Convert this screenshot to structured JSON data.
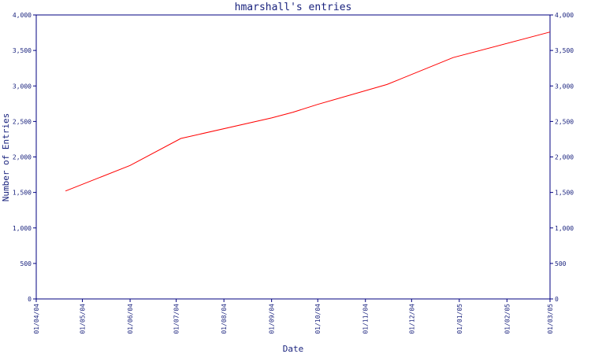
{
  "chart_data": {
    "type": "line",
    "title": "hmarshall's entries",
    "xlabel": "Date",
    "ylabel": "Number of Entries",
    "x_ticks": [
      "01/04/04",
      "01/05/04",
      "01/06/04",
      "01/07/04",
      "01/08/04",
      "01/09/04",
      "01/10/04",
      "01/11/04",
      "01/12/04",
      "01/01/05",
      "01/02/05",
      "01/03/05"
    ],
    "y_ticks": [
      "0",
      "500",
      "1,000",
      "1,500",
      "2,000",
      "2,500",
      "3,000",
      "3,500",
      "4,000"
    ],
    "xlim": [
      "2004-04-01",
      "2005-03-01"
    ],
    "ylim": [
      0,
      4000
    ],
    "grid": false,
    "legend": "none",
    "series": [
      {
        "color": "#ff0000",
        "points": [
          {
            "x": "2004-04-20",
            "y": 1520
          },
          {
            "x": "2004-06-01",
            "y": 1880
          },
          {
            "x": "2004-07-04",
            "y": 2260
          },
          {
            "x": "2004-09-01",
            "y": 2550
          },
          {
            "x": "2004-09-15",
            "y": 2630
          },
          {
            "x": "2004-10-01",
            "y": 2740
          },
          {
            "x": "2004-11-15",
            "y": 3020
          },
          {
            "x": "2004-12-28",
            "y": 3400
          },
          {
            "x": "2005-03-01",
            "y": 3760
          }
        ]
      }
    ],
    "axis_color": "#000080"
  }
}
